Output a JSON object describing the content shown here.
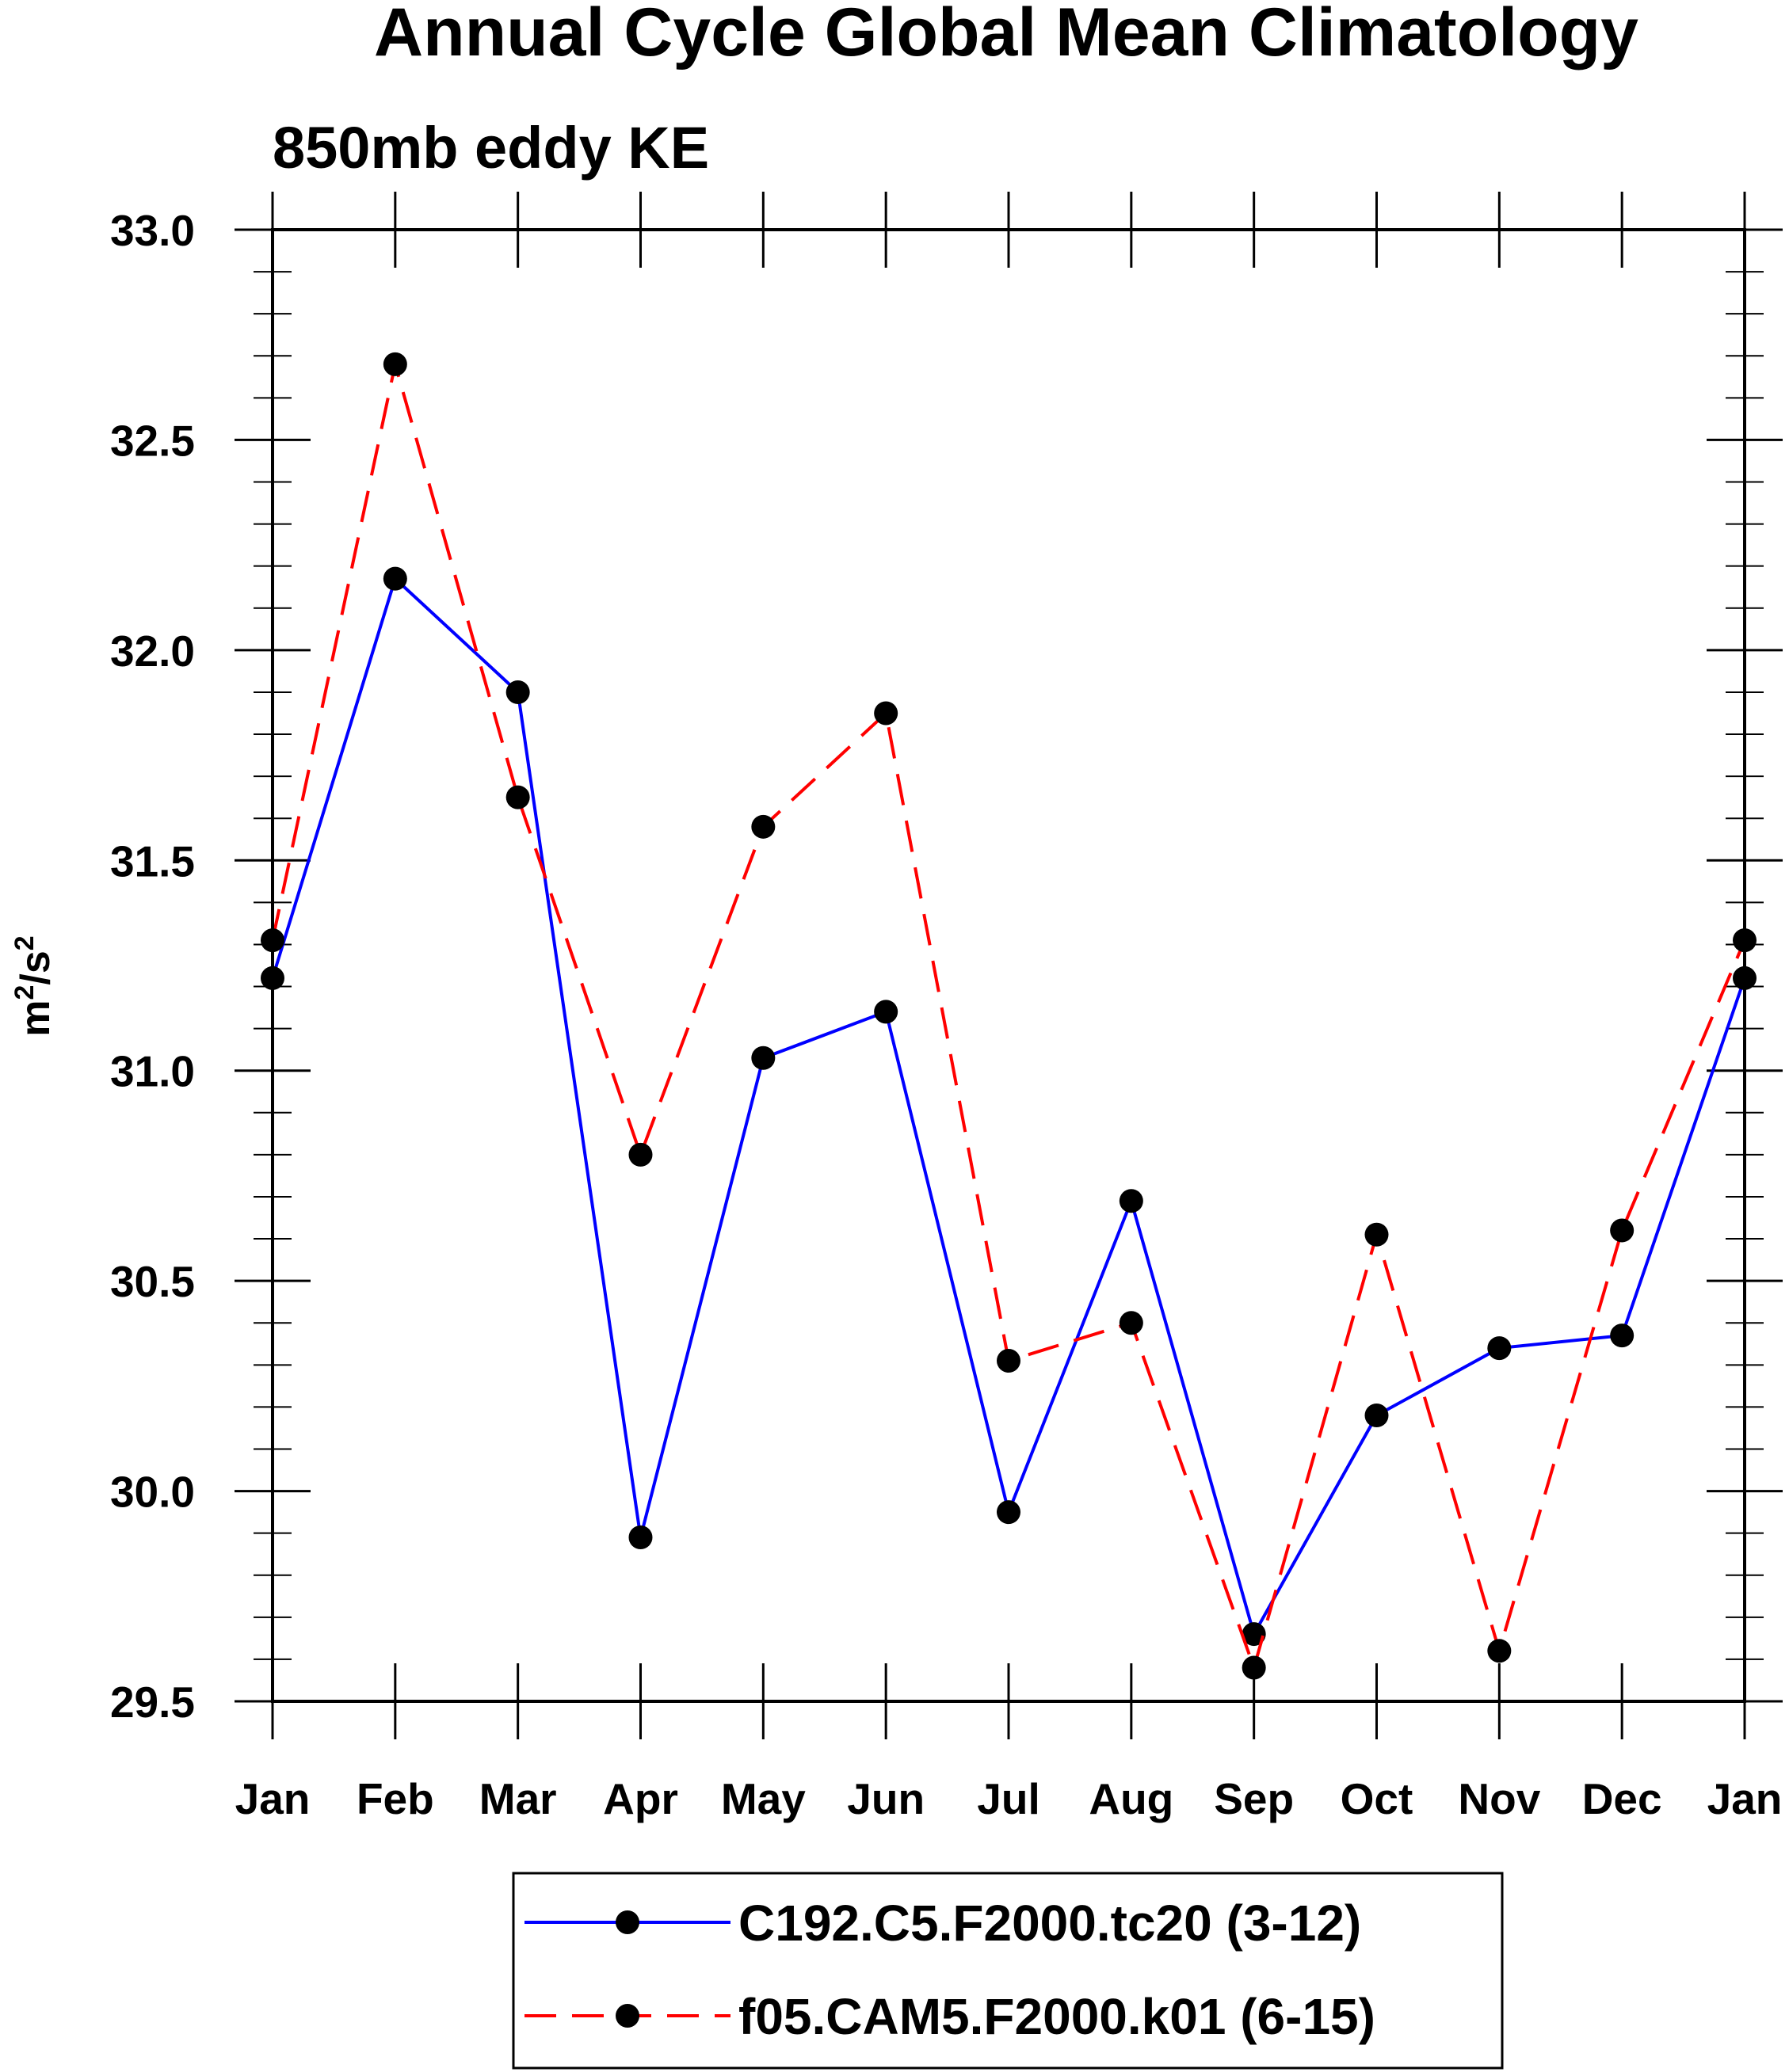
{
  "chart_data": {
    "type": "line",
    "title": "Annual Cycle Global Mean Climatology",
    "subtitle": "850mb eddy KE",
    "ylabel": {
      "base": "m",
      "sup1": "2",
      "mid": "/s",
      "sup2": "2"
    },
    "xlabel": "",
    "categories": [
      "Jan",
      "Feb",
      "Mar",
      "Apr",
      "May",
      "Jun",
      "Jul",
      "Aug",
      "Sep",
      "Oct",
      "Nov",
      "Dec",
      "Jan"
    ],
    "ylim": [
      29.5,
      33.0
    ],
    "yticks": [
      29.5,
      30.0,
      30.5,
      31.0,
      31.5,
      32.0,
      32.5,
      33.0
    ],
    "ytick_labels": [
      "29.5",
      "30.0",
      "30.5",
      "31.0",
      "31.5",
      "32.0",
      "32.5",
      "33.0"
    ],
    "grid": false,
    "legend_position": "bottom",
    "series": [
      {
        "name": "C192.C5.F2000.tc20 (3-12)",
        "color": "#0000ff",
        "line_style": "solid",
        "marker": "filled-circle",
        "values": [
          31.22,
          32.17,
          31.9,
          29.89,
          31.03,
          31.14,
          29.95,
          30.69,
          29.66,
          30.18,
          30.34,
          30.37,
          31.22
        ]
      },
      {
        "name": "f05.CAM5.F2000.k01 (6-15)",
        "color": "#ff0000",
        "line_style": "dashed",
        "marker": "filled-circle",
        "values": [
          31.31,
          32.68,
          31.65,
          30.8,
          31.58,
          31.85,
          30.31,
          30.4,
          29.58,
          30.61,
          29.62,
          30.62,
          31.31
        ]
      }
    ]
  }
}
